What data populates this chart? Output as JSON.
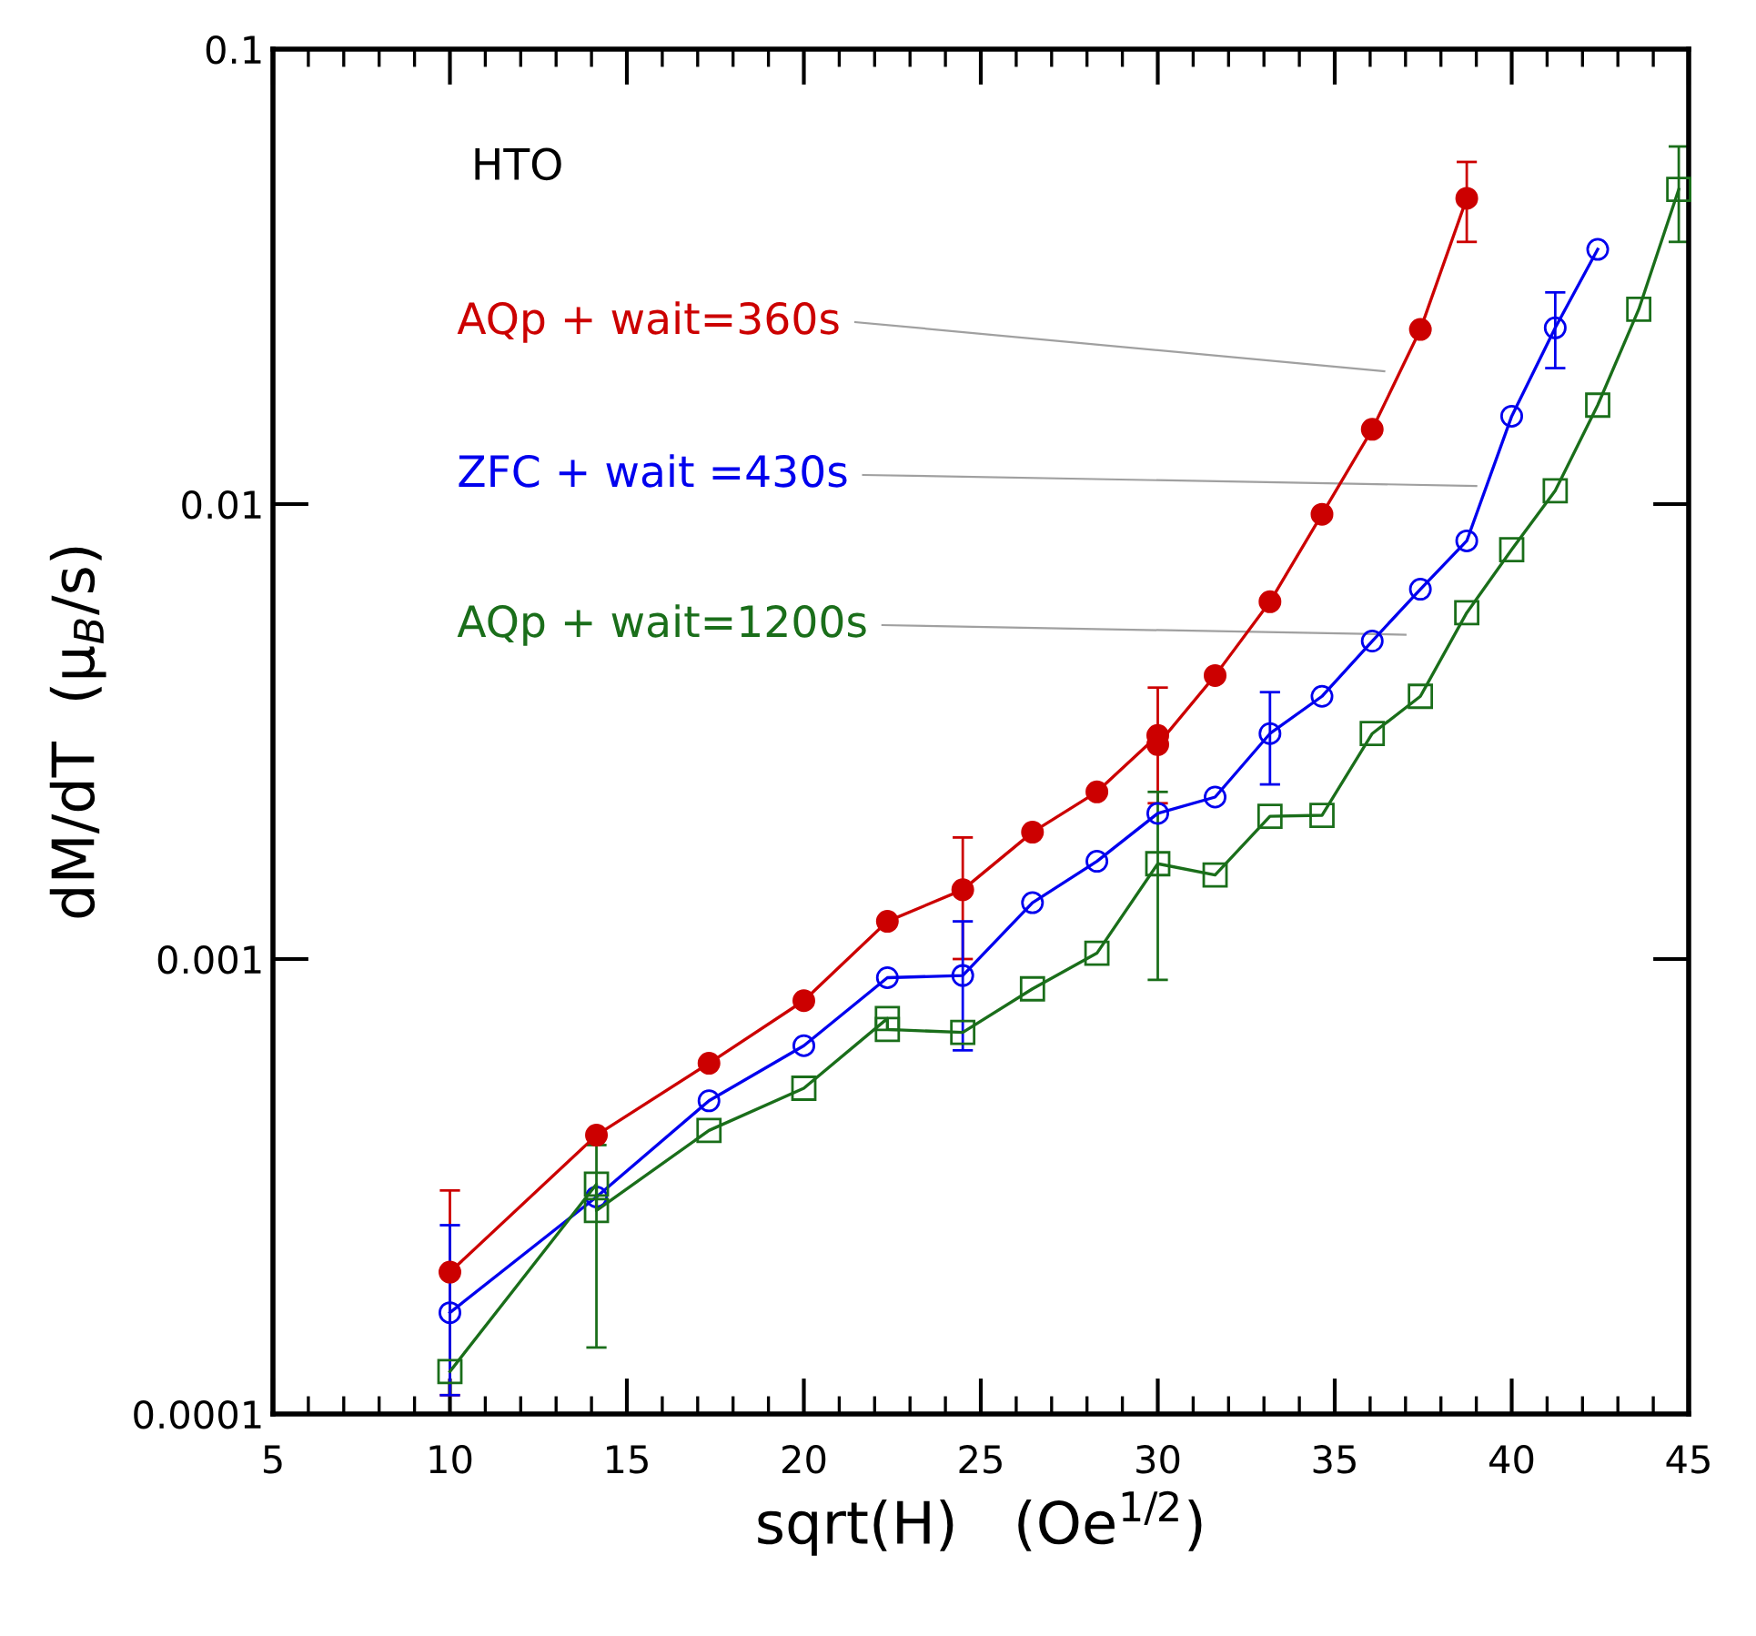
{
  "chart_data": {
    "type": "line",
    "xlabel": "sqrt(H)   (Oe$^{1/2}$)",
    "ylabel": "dM/dT  (μ$_{B}$/s)",
    "log": "y",
    "xlim": [
      5,
      45
    ],
    "xticks": [
      5,
      10,
      15,
      20,
      25,
      30,
      35,
      40,
      45
    ],
    "ylim": [
      0.0001,
      0.1
    ],
    "yticks": [
      {
        "value": 0.0001,
        "label": "0.0001"
      },
      {
        "value": 0.001,
        "label": "0.001"
      },
      {
        "value": 0.01,
        "label": "0.01"
      },
      {
        "value": 0.1,
        "label": "0.1"
      }
    ],
    "grid": false,
    "legend": false,
    "line_style": "solid",
    "annotations": [
      "HTO"
    ],
    "series": [
      {
        "name": "AQp + wait=360s",
        "color": "#cc0000",
        "marker": "circle",
        "x": [
          10,
          14.14,
          17.32,
          20,
          22.36,
          24.49,
          26.46,
          28.28,
          30,
          30,
          31.62,
          33.17,
          34.64,
          36.06,
          37.42,
          38.73
        ],
        "values": [
          0.000205,
          0.00041,
          0.00059,
          0.00081,
          0.00121,
          0.00142,
          0.0019,
          0.00233,
          0.0031,
          0.00296,
          0.0042,
          0.0061,
          0.0095,
          0.0146,
          0.0242,
          0.047
        ],
        "errors": [
          [
            0.00011,
            0.00031
          ],
          null,
          null,
          null,
          null,
          [
            0.001,
            0.00185
          ],
          null,
          null,
          [
            0.0022,
            0.00395
          ],
          null,
          null,
          null,
          null,
          null,
          null,
          [
            0.0377,
            0.0565
          ]
        ]
      },
      {
        "name": "ZFC + wait =430s",
        "color": "#0000ee",
        "marker": "circle",
        "x": [
          10,
          14.14,
          17.32,
          20,
          22.36,
          24.49,
          26.46,
          28.28,
          30,
          31.62,
          33.17,
          34.64,
          36.06,
          37.42,
          38.73,
          40,
          41.23,
          42.43
        ],
        "values": [
          0.000167,
          0.0003,
          0.000488,
          0.000645,
          0.00091,
          0.00092,
          0.00133,
          0.00164,
          0.00209,
          0.00227,
          0.00313,
          0.00378,
          0.005,
          0.0065,
          0.0083,
          0.0156,
          0.0244,
          0.0363
        ],
        "errors": [
          [
            0.00011,
            0.00026
          ],
          null,
          null,
          null,
          null,
          [
            0.00063,
            0.00121
          ],
          null,
          null,
          null,
          null,
          [
            0.00242,
            0.00386
          ],
          null,
          null,
          null,
          null,
          null,
          [
            0.0199,
            0.0292
          ],
          null
        ]
      },
      {
        "name": "AQp + wait=1200s",
        "color": "#1a6e1a",
        "marker": "square",
        "x": [
          10,
          14.14,
          14.14,
          17.32,
          20,
          22.36,
          22.36,
          24.49,
          26.46,
          28.28,
          30,
          31.62,
          33.17,
          34.64,
          36.06,
          37.42,
          38.73,
          40,
          41.23,
          42.43,
          43.59,
          44.72
        ],
        "values": [
          0.000124,
          0.00032,
          0.00028,
          0.00042,
          0.00052,
          0.00074,
          0.0007,
          0.00069,
          0.00086,
          0.00103,
          0.00162,
          0.00153,
          0.00206,
          0.00207,
          0.00313,
          0.00378,
          0.00577,
          0.00794,
          0.0107,
          0.0165,
          0.0268,
          0.0492
        ],
        "errors": [
          null,
          [
            0.00014,
            0.00039
          ],
          null,
          null,
          null,
          null,
          null,
          null,
          null,
          null,
          [
            0.0009,
            0.00233
          ],
          null,
          null,
          null,
          null,
          null,
          null,
          null,
          null,
          null,
          null,
          [
            0.0377,
            0.0611
          ]
        ]
      }
    ]
  }
}
